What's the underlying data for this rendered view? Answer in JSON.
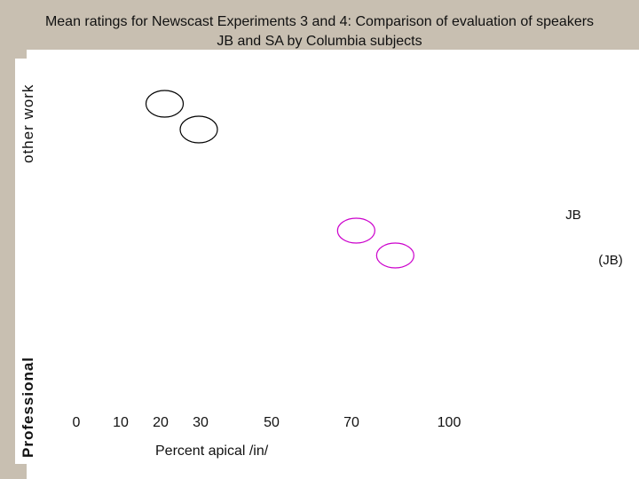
{
  "chart_data": {
    "type": "scatter",
    "title": "Mean ratings for Newscast Experiments 3 and 4: Comparison of evaluation of speakers JB and SA by Columbia subjects",
    "ylabel_top": "other work",
    "ylabel_bottom": "Professional",
    "xlabel": "Percent apical /in/",
    "x_ticks": [
      0,
      10,
      20,
      30,
      50,
      70,
      100
    ],
    "series": [
      {
        "name": "",
        "color": "#000000",
        "points": [
          {
            "x": 25,
            "label": ""
          },
          {
            "x": 34,
            "label": ""
          }
        ]
      },
      {
        "name": "",
        "color": "#cc00cc",
        "points": [
          {
            "x": 78,
            "label": "JB"
          },
          {
            "x": 90,
            "label": "(JB)"
          }
        ]
      }
    ]
  }
}
